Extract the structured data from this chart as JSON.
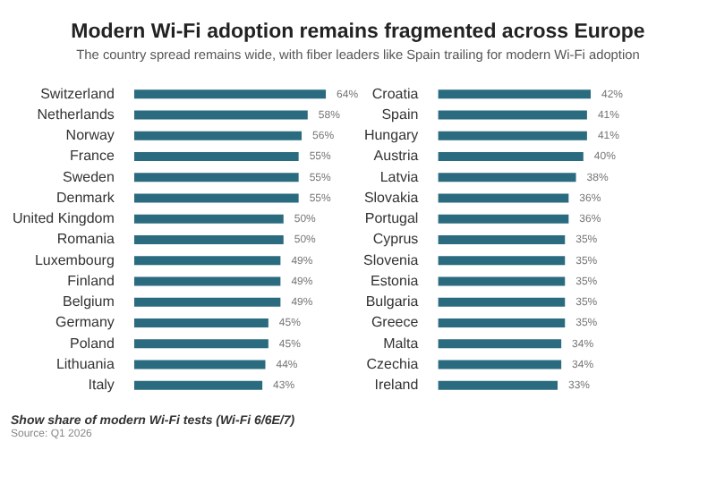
{
  "chart_data": [
    {
      "type": "bar",
      "orientation": "horizontal",
      "title": "Modern Wi-Fi adoption remains fragmented across Europe",
      "subtitle": "The country spread remains wide, with fiber leaders like Spain trailing for modern Wi-Fi adoption",
      "categories": [
        "Switzerland",
        "Netherlands",
        "Norway",
        "France",
        "Sweden",
        "Denmark",
        "United Kingdom",
        "Romania",
        "Luxembourg",
        "Finland",
        "Belgium",
        "Germany",
        "Poland",
        "Lithuania",
        "Italy"
      ],
      "values": [
        64,
        58,
        56,
        55,
        55,
        55,
        50,
        50,
        49,
        49,
        49,
        45,
        45,
        44,
        43
      ],
      "value_labels": [
        "64%",
        "58%",
        "56%",
        "55%",
        "55%",
        "55%",
        "50%",
        "50%",
        "49%",
        "49%",
        "49%",
        "45%",
        "45%",
        "44%",
        "43%"
      ],
      "color": "#2a6b80",
      "tick_labels": "y",
      "grid": false,
      "legend": false,
      "annotations": [
        "Show share of modern Wi-Fi tests (Wi-Fi 6/6E/7)",
        "Source: Q1 2026"
      ]
    },
    {
      "type": "bar",
      "orientation": "horizontal",
      "categories": [
        "Croatia",
        "Spain",
        "Hungary",
        "Austria",
        "Latvia",
        "Slovakia",
        "Portugal",
        "Cyprus",
        "Slovenia",
        "Estonia",
        "Bulgaria",
        "Greece",
        "Malta",
        "Czechia",
        "Ireland"
      ],
      "values": [
        42,
        41,
        41,
        40,
        38,
        36,
        36,
        35,
        35,
        35,
        35,
        35,
        34,
        34,
        33
      ],
      "value_labels": [
        "42%",
        "41%",
        "41%",
        "40%",
        "38%",
        "36%",
        "36%",
        "35%",
        "35%",
        "35%",
        "35%",
        "35%",
        "34%",
        "34%",
        "33%"
      ],
      "color": "#2a6b80",
      "tick_labels": "y",
      "grid": false,
      "legend": false
    }
  ]
}
